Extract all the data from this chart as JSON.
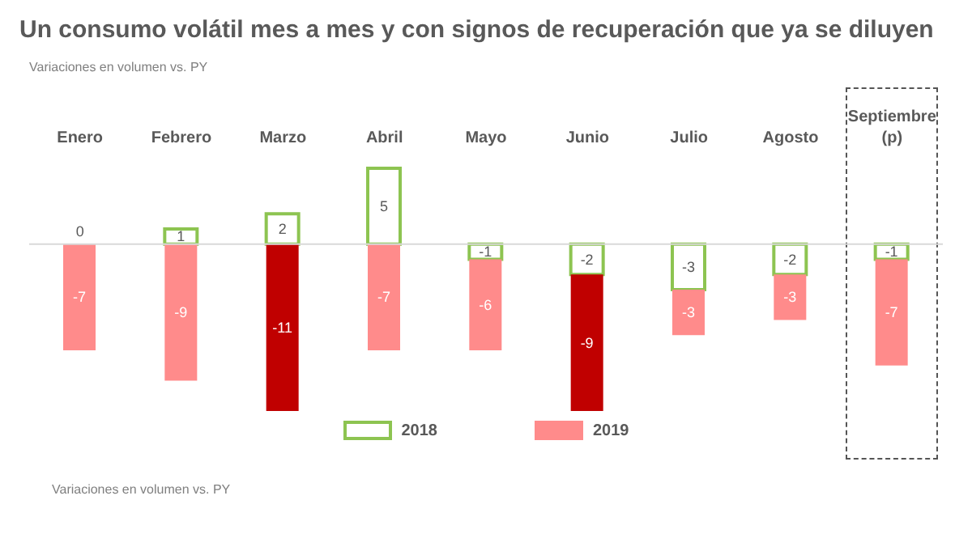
{
  "chart_data": {
    "type": "bar",
    "title": "Un consumo volátil mes a mes y con signos de recuperación que ya se diluyen",
    "subtitle": "Variaciones en volumen vs. PY",
    "annotations": [
      "Variaciones en volumen vs. PY"
    ],
    "categories": [
      "Enero",
      "Febrero",
      "Marzo",
      "Abril",
      "Mayo",
      "Junio",
      "Julio",
      "Agosto",
      "Septiembre (p)"
    ],
    "stacked": true,
    "data_labels": true,
    "legend": "bottom",
    "grid": false,
    "series": [
      {
        "name": "2018",
        "color": "#8dc451",
        "values": [
          0,
          1,
          2,
          5,
          -1,
          -2,
          -3,
          -2,
          -1
        ]
      },
      {
        "name": "2019",
        "color": "#ff8b8b",
        "colors": [
          "#ff8b8b",
          "#ff8b8b",
          "#c00000",
          "#ff8b8b",
          "#ff8b8b",
          "#c00000",
          "#ff8b8b",
          "#ff8b8b",
          "#ff8b8b"
        ],
        "values": [
          -7,
          -9,
          -11,
          -7,
          -6,
          -9,
          -3,
          -3,
          -7
        ]
      }
    ]
  }
}
